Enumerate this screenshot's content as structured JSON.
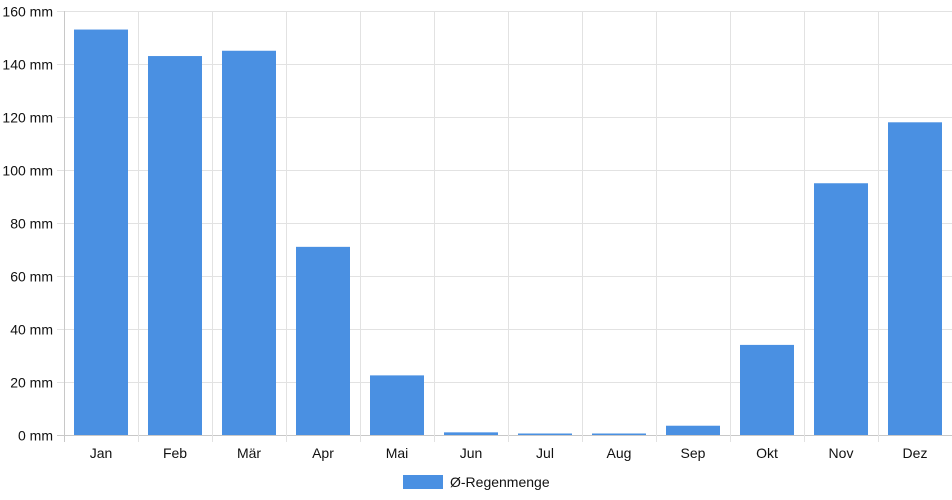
{
  "chart_data": {
    "type": "bar",
    "categories": [
      "Jan",
      "Feb",
      "Mär",
      "Apr",
      "Mai",
      "Jun",
      "Jul",
      "Aug",
      "Sep",
      "Okt",
      "Nov",
      "Dez"
    ],
    "series": [
      {
        "name": "Ø-Regenmenge",
        "values": [
          153,
          143,
          145,
          71,
          22.5,
          1,
          0.5,
          0.3,
          3.5,
          34,
          95,
          118
        ]
      }
    ],
    "y_unit": "mm",
    "ylim": [
      0,
      160
    ],
    "y_ticks": [
      0,
      20,
      40,
      60,
      80,
      100,
      120,
      140,
      160
    ],
    "y_tick_labels": [
      "0 mm",
      "20 mm",
      "40 mm",
      "60 mm",
      "80 mm",
      "100 mm",
      "120 mm",
      "140 mm",
      "160 mm"
    ],
    "grid": true,
    "legend_position": "bottom-center",
    "colors": {
      "bar": "#4a90e2",
      "grid": "#e2e2e2",
      "axis": "#c8c8c8",
      "text": "#111111"
    }
  }
}
